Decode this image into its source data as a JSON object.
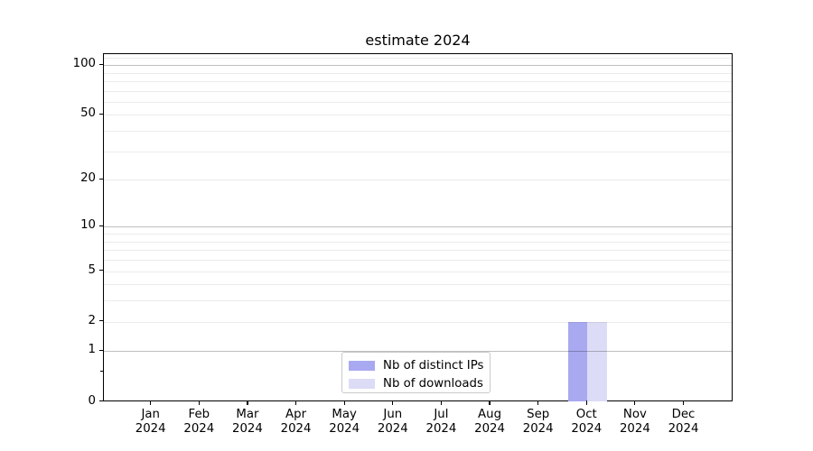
{
  "page": {
    "background": "#ffffff"
  },
  "chart_data": {
    "type": "bar",
    "title": "estimate 2024",
    "categories": [
      "Jan",
      "Feb",
      "Mar",
      "Apr",
      "May",
      "Jun",
      "Jul",
      "Aug",
      "Sep",
      "Oct",
      "Nov",
      "Dec"
    ],
    "category_year": "2024",
    "series": [
      {
        "name": "Nb of distinct IPs",
        "color": "#a9a9f1",
        "values": [
          0,
          0,
          0,
          0,
          0,
          0,
          0,
          0,
          0,
          2,
          0,
          0
        ]
      },
      {
        "name": "Nb of downloads",
        "color": "#dcdcf6",
        "values": [
          0,
          0,
          0,
          0,
          0,
          0,
          0,
          0,
          0,
          2,
          0,
          0
        ]
      }
    ],
    "xlabel": "",
    "ylabel": "",
    "y_scale": "log1p",
    "ylim": [
      0,
      116.3
    ],
    "y_ticks": [
      0,
      1,
      2,
      5,
      10,
      20,
      50,
      100
    ],
    "y_minor_ticks": [
      0.5
    ],
    "grid_major": [
      1,
      10,
      100
    ],
    "grid_minor": [
      2,
      3,
      4,
      5,
      6,
      7,
      8,
      9,
      20,
      30,
      40,
      50,
      60,
      70,
      80,
      90,
      110
    ],
    "grid": "on",
    "legend_position": "lower center",
    "colors": {
      "grid_major": "rgba(0,0,0,0.25)",
      "grid_minor": "rgba(0,0,0,0.08)",
      "axis": "#000000",
      "text": "#000000"
    }
  }
}
